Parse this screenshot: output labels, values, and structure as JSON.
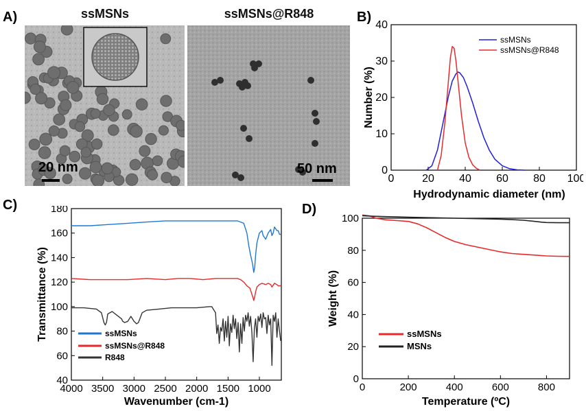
{
  "panels": {
    "a": {
      "letter": "A)",
      "images": [
        {
          "title": "ssMSNs",
          "scale_label": "20 nm"
        },
        {
          "title": "ssMSNs@R848",
          "scale_label": "50 nm"
        }
      ]
    },
    "b": {
      "letter": "B)"
    },
    "c": {
      "letter": "C)"
    },
    "d": {
      "letter": "D)"
    }
  },
  "chart_data": [
    {
      "id": "B",
      "type": "line",
      "xlabel": "Hydrodynamic diameter (nm)",
      "ylabel": "Number (%)",
      "xlim": [
        0,
        100
      ],
      "ylim": [
        0,
        40
      ],
      "xticks": [
        0,
        20,
        40,
        60,
        80,
        100
      ],
      "yticks": [
        0,
        10,
        20,
        30,
        40
      ],
      "legend": "top-right",
      "series": [
        {
          "name": "ssMSNs",
          "color": "#1f1fe0",
          "x": [
            19,
            22,
            25,
            28,
            31,
            33,
            35,
            36,
            37,
            39,
            41,
            44,
            47,
            50,
            53,
            56,
            60,
            64,
            68,
            72
          ],
          "y": [
            0,
            1.2,
            5.5,
            13,
            20.5,
            24.5,
            26.5,
            27,
            26.8,
            25.5,
            23,
            18.5,
            13.5,
            9,
            5.5,
            3,
            1.2,
            0.4,
            0.1,
            0
          ]
        },
        {
          "name": "ssMSNs@R848",
          "color": "#e8292b",
          "x": [
            25,
            27,
            29,
            31,
            32,
            33,
            34,
            35,
            36,
            38,
            40,
            42,
            44,
            46,
            48
          ],
          "y": [
            0,
            4,
            13,
            25,
            31,
            34,
            33.5,
            30,
            25,
            15,
            7.5,
            3.5,
            1.5,
            0.5,
            0
          ]
        }
      ]
    },
    {
      "id": "C",
      "type": "line",
      "xlabel": "Wavenumber (cm-1)",
      "ylabel": "Transmittance (%)",
      "xlim": [
        4000,
        650
      ],
      "ylim": [
        40,
        180
      ],
      "xticks": [
        4000,
        3500,
        3000,
        2500,
        2000,
        1500,
        1000
      ],
      "yticks": [
        40,
        60,
        80,
        100,
        120,
        140,
        160,
        180
      ],
      "legend": "bottom-left",
      "series": [
        {
          "name": "ssMSNs",
          "color": "#1f77d4",
          "x": [
            4000,
            3700,
            3400,
            3100,
            2800,
            2500,
            2300,
            2100,
            1900,
            1700,
            1500,
            1350,
            1300,
            1250,
            1200,
            1170,
            1140,
            1110,
            1090,
            1075,
            1060,
            1040,
            1000,
            960,
            940,
            900,
            860,
            820,
            800,
            780,
            760,
            720,
            700,
            680,
            660
          ],
          "y": [
            166,
            166,
            167,
            168,
            169,
            170,
            170,
            170,
            170,
            170,
            170,
            170,
            169,
            168,
            160,
            150,
            142,
            135,
            128,
            132,
            142,
            152,
            160,
            162,
            158,
            155,
            160,
            163,
            158,
            160,
            165,
            162,
            162,
            159,
            159
          ]
        },
        {
          "name": "ssMSNs@R848",
          "color": "#e8292b",
          "x": [
            4000,
            3700,
            3400,
            3100,
            2800,
            2500,
            2300,
            2100,
            1900,
            1700,
            1500,
            1350,
            1300,
            1250,
            1200,
            1150,
            1120,
            1100,
            1090,
            1075,
            1060,
            1040,
            1000,
            960,
            900,
            860,
            820,
            800,
            760,
            720,
            700,
            680,
            660
          ],
          "y": [
            123,
            122,
            122,
            122,
            123,
            122,
            123,
            123,
            122,
            123,
            123,
            123,
            122,
            120,
            117,
            115,
            110,
            107,
            105,
            108,
            112,
            116,
            118,
            119,
            118,
            119,
            118,
            116,
            119,
            118,
            117,
            117,
            117
          ]
        },
        {
          "name": "R848",
          "color": "#333333",
          "x": [
            4000,
            3800,
            3600,
            3520,
            3480,
            3460,
            3440,
            3420,
            3350,
            3250,
            3200,
            3180,
            3150,
            3100,
            3050,
            3000,
            2960,
            2930,
            2900,
            2870,
            2800,
            2600,
            2400,
            2200,
            2000,
            1800,
            1760,
            1700,
            1680,
            1660,
            1640,
            1620,
            1600,
            1580,
            1560,
            1540,
            1520,
            1500,
            1480,
            1460,
            1440,
            1420,
            1400,
            1380,
            1360,
            1340,
            1320,
            1300,
            1280,
            1260,
            1240,
            1220,
            1200,
            1180,
            1160,
            1140,
            1120,
            1100,
            1080,
            1060,
            1040,
            1020,
            1000,
            980,
            960,
            940,
            920,
            900,
            880,
            860,
            840,
            820,
            800,
            780,
            760,
            740,
            720,
            700,
            680,
            660
          ],
          "y": [
            99,
            99,
            98,
            95,
            87,
            85,
            87,
            94,
            96,
            92,
            90,
            88,
            87,
            88,
            92,
            88,
            86,
            87,
            91,
            95,
            97,
            98,
            99,
            99,
            99,
            100,
            100,
            95,
            78,
            85,
            70,
            83,
            80,
            90,
            72,
            88,
            75,
            92,
            68,
            86,
            79,
            93,
            82,
            90,
            74,
            87,
            63,
            86,
            70,
            91,
            80,
            93,
            88,
            95,
            84,
            92,
            79,
            55,
            82,
            90,
            75,
            92,
            88,
            94,
            83,
            95,
            90,
            91,
            78,
            93,
            85,
            90,
            52,
            93,
            88,
            95,
            75,
            90,
            80,
            72
          ]
        }
      ]
    },
    {
      "id": "D",
      "type": "line",
      "xlabel": "Temperature (ºC)",
      "ylabel": "Weight (%)",
      "xlim": [
        0,
        900
      ],
      "ylim": [
        0,
        100
      ],
      "xticks": [
        0,
        200,
        400,
        600,
        800
      ],
      "yticks": [
        0,
        20,
        40,
        60,
        80,
        100
      ],
      "legend": "bottom-left",
      "series": [
        {
          "name": "ssMSNs",
          "color": "#e8292b",
          "x": [
            0,
            30,
            60,
            100,
            150,
            200,
            240,
            280,
            320,
            360,
            400,
            450,
            500,
            550,
            600,
            650,
            700,
            750,
            800,
            850,
            900
          ],
          "y": [
            102,
            101.5,
            100,
            99,
            98.5,
            98,
            96.5,
            94,
            91,
            88,
            85.5,
            83.5,
            82,
            80.5,
            79,
            78,
            77.5,
            77,
            76.5,
            76.3,
            76.2
          ]
        },
        {
          "name": "MSNs",
          "color": "#222222",
          "x": [
            0,
            50,
            100,
            200,
            300,
            400,
            500,
            600,
            650,
            700,
            750,
            780,
            800,
            850,
            900
          ],
          "y": [
            101.5,
            101.2,
            101,
            100.6,
            100.3,
            100,
            99.7,
            99.4,
            99.1,
            98.7,
            98,
            97.5,
            97.3,
            97.2,
            97.2
          ]
        }
      ]
    }
  ]
}
